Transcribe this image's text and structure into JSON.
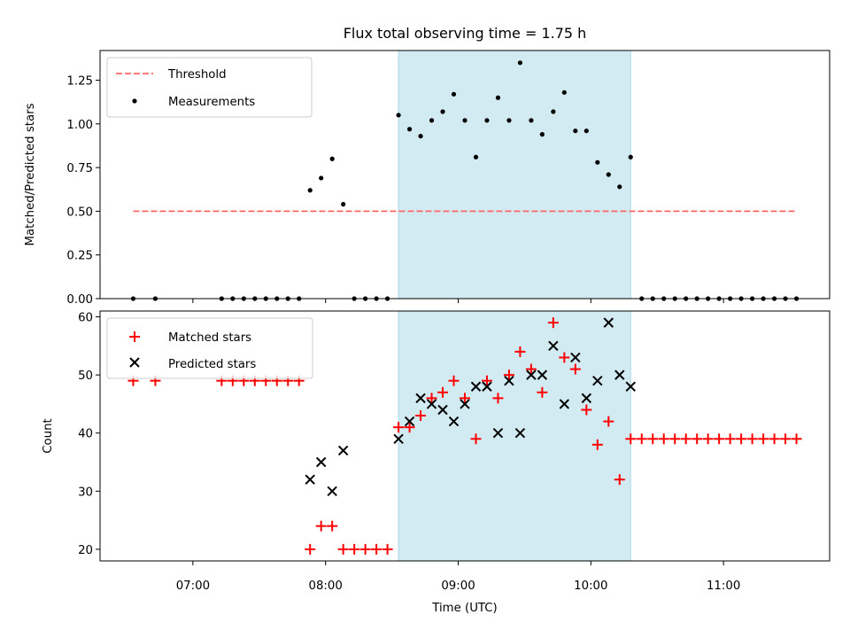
{
  "chart_data": [
    {
      "type": "scatter",
      "title": "Flux total observing time = 1.75 h",
      "ylabel": "Matched/Predicted stars",
      "ylim": [
        0,
        1.42
      ],
      "yticks": [
        0.0,
        0.25,
        0.5,
        0.75,
        1.0,
        1.25
      ],
      "ytick_labels": [
        "0.00",
        "0.25",
        "0.50",
        "0.75",
        "1.00",
        "1.25"
      ],
      "legend": [
        "Threshold",
        "Measurements"
      ],
      "legend_location": "upper-left",
      "shaded_interval": [
        "08:33",
        "10:18"
      ],
      "shade_color": "#add8e6",
      "threshold": {
        "name": "Threshold",
        "x": [
          "06:33",
          "11:33"
        ],
        "y": 0.5,
        "color": "#ff6666",
        "style": "dashed"
      },
      "series": [
        {
          "name": "Measurements",
          "color": "#000000",
          "points": [
            [
              "06:33",
              0.0
            ],
            [
              "06:43",
              0.0
            ],
            [
              "07:13",
              0.0
            ],
            [
              "07:18",
              0.0
            ],
            [
              "07:23",
              0.0
            ],
            [
              "07:28",
              0.0
            ],
            [
              "07:33",
              0.0
            ],
            [
              "07:38",
              0.0
            ],
            [
              "07:43",
              0.0
            ],
            [
              "07:48",
              0.0
            ],
            [
              "07:53",
              0.62
            ],
            [
              "07:58",
              0.69
            ],
            [
              "08:03",
              0.8
            ],
            [
              "08:08",
              0.54
            ],
            [
              "08:13",
              0.0
            ],
            [
              "08:18",
              0.0
            ],
            [
              "08:23",
              0.0
            ],
            [
              "08:28",
              0.0
            ],
            [
              "08:33",
              1.05
            ],
            [
              "08:38",
              0.97
            ],
            [
              "08:43",
              0.93
            ],
            [
              "08:48",
              1.02
            ],
            [
              "08:53",
              1.07
            ],
            [
              "08:58",
              1.17
            ],
            [
              "09:03",
              1.02
            ],
            [
              "09:08",
              0.81
            ],
            [
              "09:13",
              1.02
            ],
            [
              "09:18",
              1.15
            ],
            [
              "09:23",
              1.02
            ],
            [
              "09:28",
              1.35
            ],
            [
              "09:33",
              1.02
            ],
            [
              "09:38",
              0.94
            ],
            [
              "09:43",
              1.07
            ],
            [
              "09:48",
              1.18
            ],
            [
              "09:53",
              0.96
            ],
            [
              "09:58",
              0.96
            ],
            [
              "10:03",
              0.78
            ],
            [
              "10:08",
              0.71
            ],
            [
              "10:13",
              0.64
            ],
            [
              "10:18",
              0.81
            ],
            [
              "10:23",
              0.0
            ],
            [
              "10:28",
              0.0
            ],
            [
              "10:33",
              0.0
            ],
            [
              "10:38",
              0.0
            ],
            [
              "10:43",
              0.0
            ],
            [
              "10:48",
              0.0
            ],
            [
              "10:53",
              0.0
            ],
            [
              "10:58",
              0.0
            ],
            [
              "11:03",
              0.0
            ],
            [
              "11:08",
              0.0
            ],
            [
              "11:13",
              0.0
            ],
            [
              "11:18",
              0.0
            ],
            [
              "11:23",
              0.0
            ],
            [
              "11:28",
              0.0
            ],
            [
              "11:33",
              0.0
            ]
          ]
        }
      ]
    },
    {
      "type": "scatter",
      "xlabel": "Time (UTC)",
      "ylabel": "Count",
      "xlim": [
        "06:18",
        "11:48"
      ],
      "ylim": [
        18,
        61
      ],
      "xticks": [
        "07:00",
        "08:00",
        "09:00",
        "10:00",
        "11:00"
      ],
      "yticks": [
        20,
        30,
        40,
        50,
        60
      ],
      "legend": [
        "Matched stars",
        "Predicted stars"
      ],
      "legend_location": "upper-left",
      "shaded_interval": [
        "08:33",
        "10:18"
      ],
      "shade_color": "#add8e6",
      "series": [
        {
          "name": "Matched stars",
          "marker": "plus",
          "color": "#ff0000",
          "points": [
            [
              "06:33",
              49
            ],
            [
              "06:43",
              49
            ],
            [
              "07:13",
              49
            ],
            [
              "07:18",
              49
            ],
            [
              "07:23",
              49
            ],
            [
              "07:28",
              49
            ],
            [
              "07:33",
              49
            ],
            [
              "07:38",
              49
            ],
            [
              "07:43",
              49
            ],
            [
              "07:48",
              49
            ],
            [
              "07:53",
              20
            ],
            [
              "07:58",
              24
            ],
            [
              "08:03",
              24
            ],
            [
              "08:08",
              20
            ],
            [
              "08:13",
              20
            ],
            [
              "08:18",
              20
            ],
            [
              "08:23",
              20
            ],
            [
              "08:28",
              20
            ],
            [
              "08:33",
              41
            ],
            [
              "08:38",
              41
            ],
            [
              "08:43",
              43
            ],
            [
              "08:48",
              46
            ],
            [
              "08:53",
              47
            ],
            [
              "08:58",
              49
            ],
            [
              "09:03",
              46
            ],
            [
              "09:08",
              39
            ],
            [
              "09:13",
              49
            ],
            [
              "09:18",
              46
            ],
            [
              "09:23",
              50
            ],
            [
              "09:28",
              54
            ],
            [
              "09:33",
              51
            ],
            [
              "09:38",
              47
            ],
            [
              "09:43",
              59
            ],
            [
              "09:48",
              53
            ],
            [
              "09:53",
              51
            ],
            [
              "09:58",
              44
            ],
            [
              "10:03",
              38
            ],
            [
              "10:08",
              42
            ],
            [
              "10:13",
              32
            ],
            [
              "10:18",
              39
            ],
            [
              "10:23",
              39
            ],
            [
              "10:28",
              39
            ],
            [
              "10:33",
              39
            ],
            [
              "10:38",
              39
            ],
            [
              "10:43",
              39
            ],
            [
              "10:48",
              39
            ],
            [
              "10:53",
              39
            ],
            [
              "10:58",
              39
            ],
            [
              "11:03",
              39
            ],
            [
              "11:08",
              39
            ],
            [
              "11:13",
              39
            ],
            [
              "11:18",
              39
            ],
            [
              "11:23",
              39
            ],
            [
              "11:28",
              39
            ],
            [
              "11:33",
              39
            ]
          ]
        },
        {
          "name": "Predicted stars",
          "marker": "x",
          "color": "#000000",
          "points": [
            [
              "07:53",
              32
            ],
            [
              "07:58",
              35
            ],
            [
              "08:03",
              30
            ],
            [
              "08:08",
              37
            ],
            [
              "08:33",
              39
            ],
            [
              "08:38",
              42
            ],
            [
              "08:43",
              46
            ],
            [
              "08:48",
              45
            ],
            [
              "08:53",
              44
            ],
            [
              "08:58",
              42
            ],
            [
              "09:03",
              45
            ],
            [
              "09:08",
              48
            ],
            [
              "09:13",
              48
            ],
            [
              "09:18",
              40
            ],
            [
              "09:23",
              49
            ],
            [
              "09:28",
              40
            ],
            [
              "09:33",
              50
            ],
            [
              "09:38",
              50
            ],
            [
              "09:43",
              55
            ],
            [
              "09:48",
              45
            ],
            [
              "09:53",
              53
            ],
            [
              "09:58",
              46
            ],
            [
              "10:03",
              49
            ],
            [
              "10:08",
              59
            ],
            [
              "10:13",
              50
            ],
            [
              "10:18",
              48
            ]
          ]
        }
      ]
    }
  ]
}
